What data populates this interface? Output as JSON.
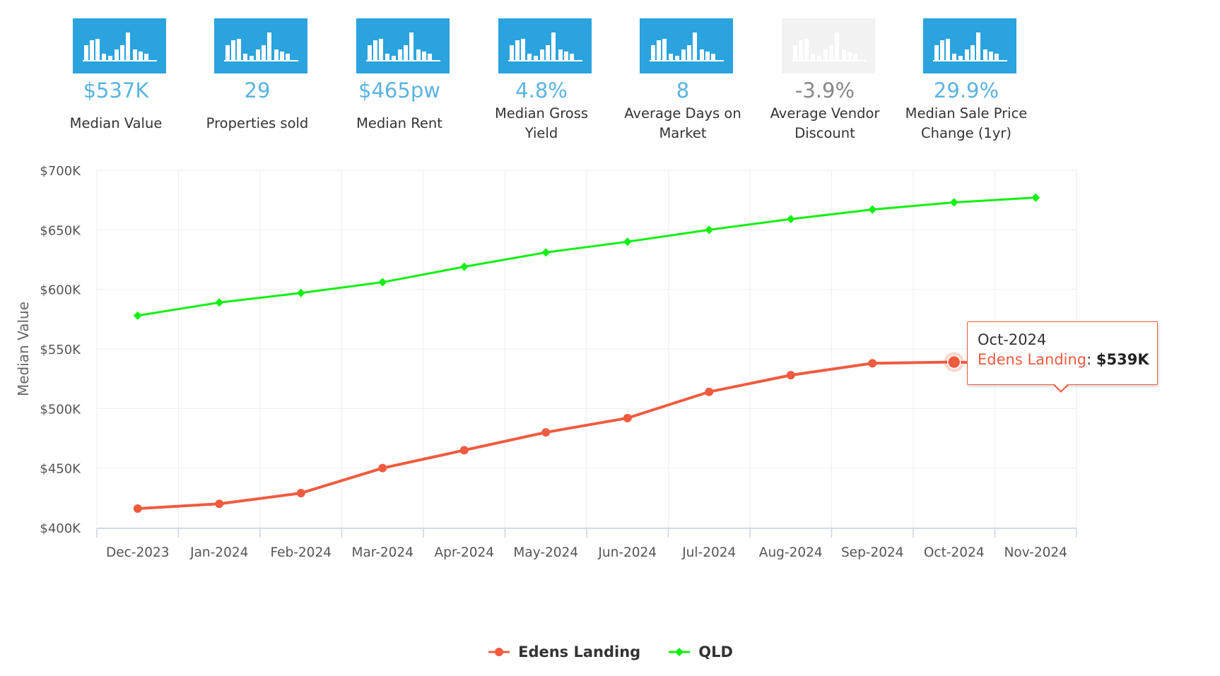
{
  "stats": [
    {
      "value": "$537K",
      "label": "Median Value",
      "active": true
    },
    {
      "value": "29",
      "label": "Properties sold",
      "active": true
    },
    {
      "value": "$465pw",
      "label": "Median Rent",
      "active": true
    },
    {
      "value": "4.8%",
      "label": "Median Gross Yield",
      "active": true
    },
    {
      "value": "8",
      "label": "Average Days on Market",
      "active": true
    },
    {
      "value": "-3.9%",
      "label": "Average Vendor Discount",
      "active": false
    },
    {
      "value": "29.9%",
      "label": "Median Sale Price Change (1yr)",
      "active": true
    }
  ],
  "colors": {
    "tile_active": "#2aa3de",
    "tile_inactive": "#f2f2f2",
    "value_active": "#5ab4e0",
    "value_inactive": "#888888",
    "grid": "#eeeeee",
    "axis": "#c9d4e3",
    "edens": "#f05b40",
    "qld": "#12f012"
  },
  "icons": {
    "stat_tile": "bar-chart-icon"
  },
  "chart_data": {
    "type": "line",
    "categories": [
      "Dec-2023",
      "Jan-2024",
      "Feb-2024",
      "Mar-2024",
      "Apr-2024",
      "May-2024",
      "Jun-2024",
      "Jul-2024",
      "Aug-2024",
      "Sep-2024",
      "Oct-2024",
      "Nov-2024"
    ],
    "series": [
      {
        "name": "Edens Landing",
        "color": "#f05b40",
        "marker": "circle",
        "values": [
          416000,
          420000,
          429000,
          450000,
          465000,
          480000,
          492000,
          514000,
          528000,
          538000,
          539000,
          537000
        ]
      },
      {
        "name": "QLD",
        "color": "#12f012",
        "marker": "diamond",
        "values": [
          578000,
          589000,
          597000,
          606000,
          619000,
          631000,
          640000,
          650000,
          659000,
          667000,
          673000,
          677000
        ]
      }
    ],
    "ylabel": "Median Value",
    "xlabel": "",
    "ylim": [
      400000,
      700000
    ],
    "yticks": [
      400000,
      450000,
      500000,
      550000,
      600000,
      650000,
      700000
    ],
    "ytick_labels": [
      "$400K",
      "$450K",
      "$500K",
      "$550K",
      "$600K",
      "$650K",
      "$700K"
    ],
    "grid": true,
    "legend": "bottom-center",
    "tooltip": {
      "category": "Oct-2024",
      "series": "Edens Landing",
      "value_label": "$539K"
    }
  }
}
